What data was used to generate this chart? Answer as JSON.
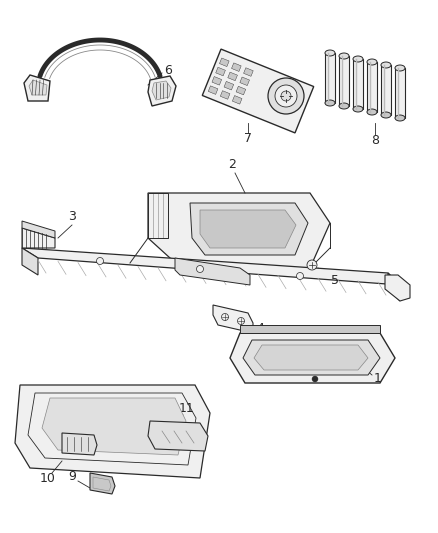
{
  "background_color": "#ffffff",
  "line_color": "#2a2a2a",
  "fill_light": "#f0f0f0",
  "fill_mid": "#e0e0e0",
  "fill_dark": "#c8c8c8",
  "fig_width": 4.38,
  "fig_height": 5.33,
  "dpi": 100
}
